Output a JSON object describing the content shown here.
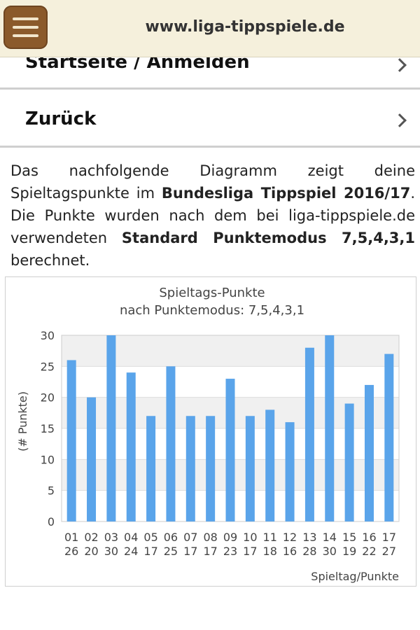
{
  "header": {
    "site_title": "www.liga-tippspiele.de",
    "menu_icon": "hamburger-menu-icon"
  },
  "nav": {
    "items": [
      {
        "label": "Startseite / Anmelden"
      },
      {
        "label": "Zurück"
      }
    ]
  },
  "intro": {
    "p1": "Das nachfolgende Diagramm zeigt deine Spieltagspunkte im ",
    "b1": "Bundesliga Tippspiel 2016/17",
    "p2": ". Die Punkte wurden nach dem bei liga-tippspiele.de verwendeten ",
    "b2": "Standard Punktemodus 7,5,4,3,1",
    "p3": " berechnet."
  },
  "chart_data": {
    "type": "bar",
    "title": "Spieltags-Punkte",
    "subtitle": "nach Punktemodus: 7,5,4,3,1",
    "xlabel": "Spieltag/Punkte",
    "ylabel": "(# Punkte)",
    "ylim": [
      0,
      30
    ],
    "yticks": [
      0,
      5,
      10,
      15,
      20,
      25,
      30
    ],
    "grid": true,
    "bar_color": "#5aa4ea",
    "categories": [
      "01",
      "02",
      "03",
      "04",
      "05",
      "06",
      "07",
      "08",
      "09",
      "10",
      "11",
      "12",
      "13",
      "14",
      "15",
      "16",
      "17"
    ],
    "values": [
      26,
      20,
      30,
      24,
      17,
      25,
      17,
      17,
      23,
      17,
      18,
      16,
      28,
      30,
      19,
      22,
      27
    ]
  }
}
